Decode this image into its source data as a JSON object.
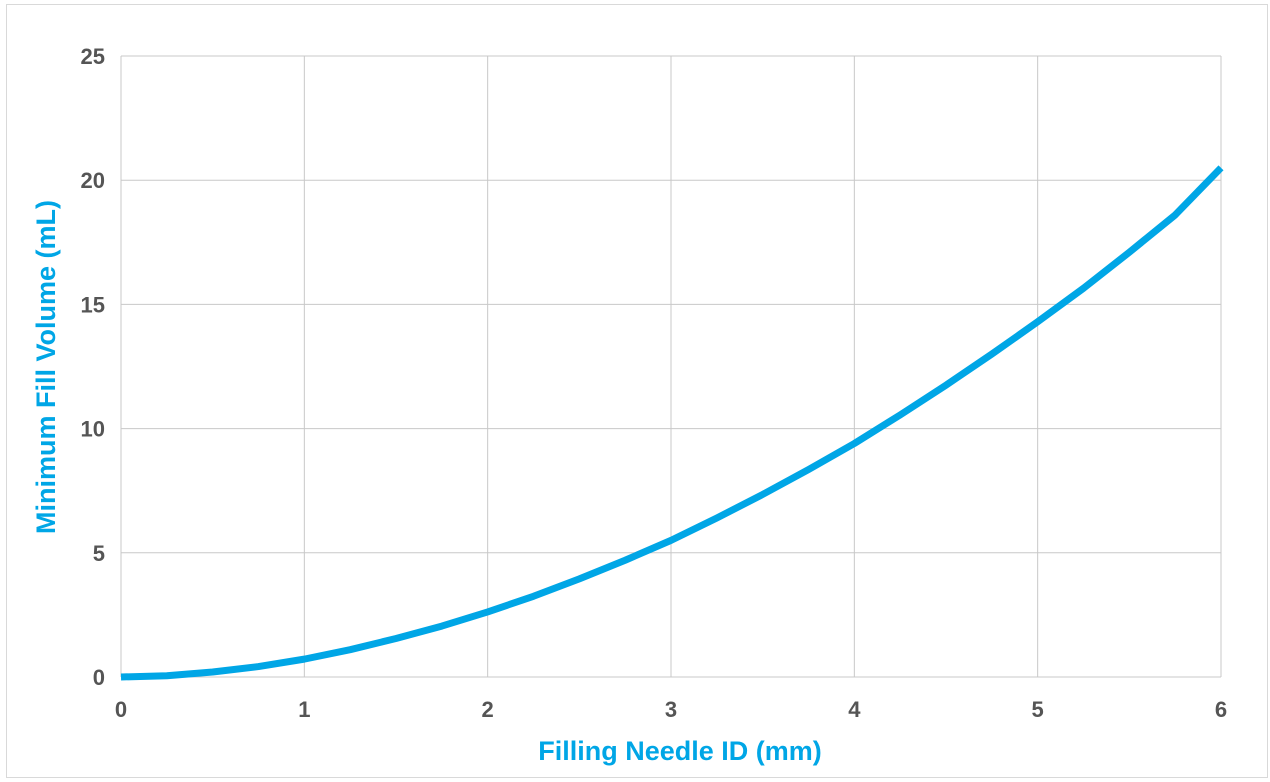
{
  "colors": {
    "series": "#00a6e6",
    "axis_title": "#00a6e6",
    "tick_label": "#555555",
    "grid": "#c8c8c8",
    "frame": "#d9d9d9"
  },
  "chart_data": {
    "type": "line",
    "title": "",
    "xlabel": "Filling Needle ID (mm)",
    "ylabel": "Minimum Fill Volume (mL)",
    "xlim": [
      0,
      6
    ],
    "ylim": [
      0,
      25
    ],
    "xticks": [
      0,
      1,
      2,
      3,
      4,
      5,
      6
    ],
    "yticks": [
      0,
      5,
      10,
      15,
      20,
      25
    ],
    "grid": true,
    "legend": "none",
    "series": [
      {
        "x": [
          0,
          0.25,
          0.5,
          0.75,
          1,
          1.25,
          1.5,
          1.75,
          2,
          2.25,
          2.5,
          2.75,
          3,
          3.25,
          3.5,
          3.75,
          4,
          4.25,
          4.5,
          4.75,
          5,
          5.25,
          5.5,
          5.75,
          6
        ],
        "y": [
          0,
          0.05,
          0.2,
          0.42,
          0.72,
          1.1,
          1.55,
          2.05,
          2.62,
          3.25,
          3.95,
          4.7,
          5.5,
          6.4,
          7.35,
          8.35,
          9.4,
          10.55,
          11.75,
          13.0,
          14.3,
          15.65,
          17.1,
          18.6,
          20.5
        ]
      }
    ]
  }
}
